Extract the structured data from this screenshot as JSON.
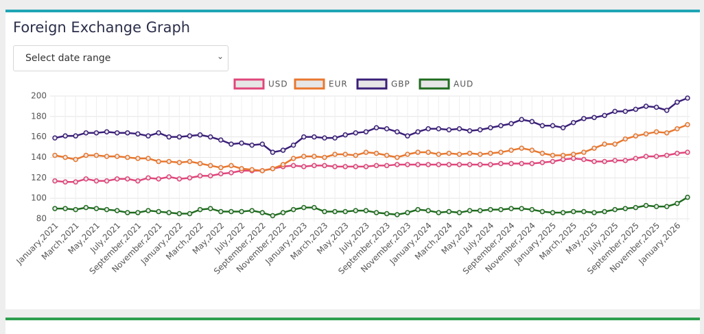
{
  "header": {
    "title": "Foreign Exchange Graph",
    "select": "Select date range"
  },
  "chart_data": {
    "type": "line",
    "categories": [
      "January,2021",
      null,
      "March,2021",
      null,
      "May,2021",
      null,
      "July,2021",
      null,
      "September,2021",
      null,
      "November,2021",
      null,
      "January,2022",
      null,
      "March,2022",
      null,
      "May,2022",
      null,
      "July,2022",
      null,
      "September,2022",
      null,
      "November,2022",
      null,
      "January,2023",
      null,
      "March,2023",
      null,
      "May,2023",
      null,
      "July,2023",
      null,
      "September,2023",
      null,
      "November,2023",
      null,
      "January,2024",
      null,
      "March,2024",
      null,
      "May,2024",
      null,
      "July,2024",
      null,
      "September,2024",
      null,
      "November,2024",
      null,
      "January,2025",
      null,
      "March,2025",
      null,
      "May,2025",
      null,
      "July,2025",
      null,
      "September,2025",
      null,
      "November,2025",
      null,
      "January,2026",
      null
    ],
    "series": [
      {
        "name": "USD",
        "color": "#e0457b",
        "values": [
          117,
          116,
          116,
          119,
          117,
          117,
          119,
          119,
          117,
          120,
          119,
          121,
          119,
          120,
          122,
          122,
          124,
          125,
          127,
          127,
          127,
          129,
          131,
          132,
          131,
          132,
          132,
          131,
          131,
          131,
          131,
          132,
          132,
          133,
          133,
          133,
          133,
          133,
          133,
          133,
          133,
          133,
          133,
          134,
          134,
          134,
          134,
          135,
          136,
          138,
          139,
          138,
          136,
          136,
          137,
          137,
          139,
          141,
          141,
          142,
          144,
          145
        ]
      },
      {
        "name": "EUR",
        "color": "#e8772e",
        "values": [
          142,
          140,
          138,
          142,
          142,
          141,
          141,
          140,
          139,
          139,
          136,
          136,
          135,
          136,
          134,
          132,
          130,
          132,
          129,
          128,
          127,
          129,
          133,
          139,
          141,
          141,
          140,
          143,
          143,
          142,
          145,
          144,
          142,
          140,
          143,
          145,
          145,
          143,
          144,
          143,
          144,
          143,
          144,
          145,
          147,
          149,
          147,
          144,
          142,
          142,
          143,
          145,
          149,
          153,
          153,
          158,
          161,
          163,
          165,
          164,
          168,
          172
        ]
      },
      {
        "name": "GBP",
        "color": "#3a1f78",
        "values": [
          159,
          161,
          161,
          164,
          164,
          165,
          164,
          164,
          163,
          161,
          164,
          160,
          160,
          161,
          162,
          160,
          157,
          153,
          154,
          152,
          153,
          145,
          147,
          152,
          160,
          160,
          159,
          159,
          162,
          164,
          165,
          169,
          168,
          165,
          161,
          165,
          168,
          168,
          167,
          168,
          166,
          167,
          169,
          171,
          173,
          177,
          175,
          171,
          171,
          169,
          174,
          178,
          179,
          181,
          185,
          185,
          187,
          190,
          189,
          186,
          194,
          198
        ]
      },
      {
        "name": "AUD",
        "color": "#1e6b1e",
        "values": [
          90,
          90,
          89,
          91,
          90,
          89,
          88,
          86,
          86,
          88,
          87,
          86,
          85,
          85,
          89,
          90,
          87,
          87,
          87,
          88,
          86,
          83,
          86,
          89,
          91,
          91,
          87,
          87,
          87,
          88,
          88,
          86,
          85,
          84,
          86,
          89,
          88,
          86,
          87,
          86,
          88,
          88,
          89,
          89,
          90,
          90,
          89,
          87,
          86,
          86,
          87,
          87,
          86,
          87,
          89,
          90,
          91,
          93,
          92,
          92,
          95,
          101
        ]
      }
    ],
    "ylim": [
      80,
      200
    ],
    "yticks": [
      80,
      100,
      120,
      140,
      160,
      180,
      200
    ],
    "grid": true,
    "legend": "top"
  }
}
